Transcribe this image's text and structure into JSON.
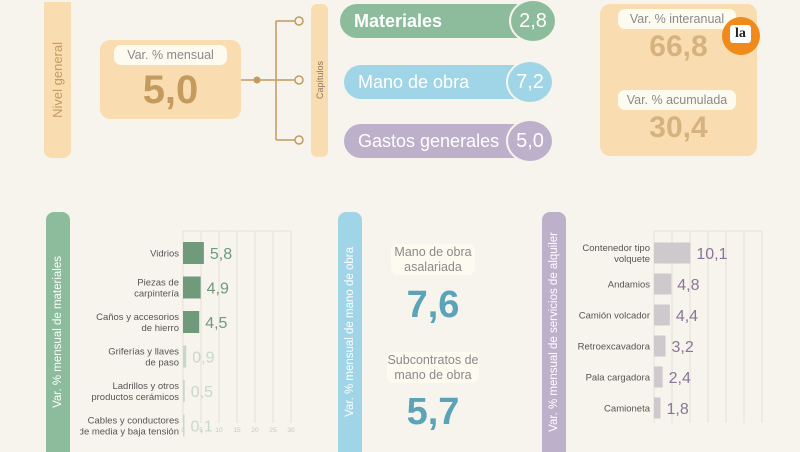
{
  "colors": {
    "orange": "#f9ddb0",
    "orange_text": "#c49a5e",
    "green": "#8cbc9c",
    "green_dark": "#6f9a7c",
    "blue": "#9fd5e6",
    "blue_text": "#5aa3b8",
    "purple": "#bdb0ca",
    "purple_text": "#8a7598",
    "logo": "#f08a1b"
  },
  "nivel_general": {
    "side_label": "Nivel general",
    "tag": "Var. % mensual",
    "value": "5,0"
  },
  "capitulos": {
    "side_label": "Capítulos",
    "items": [
      {
        "label": "Materiales",
        "value": "2,8"
      },
      {
        "label": "Mano de obra",
        "value": "7,2"
      },
      {
        "label": "Gastos generales",
        "value": "5,0"
      }
    ]
  },
  "right_panel": {
    "interanual_tag": "Var. % interanual",
    "interanual_value": "66,8",
    "acumulada_tag": "Var. % acumulada",
    "acumulada_value": "30,4",
    "logo_text": "la"
  },
  "mano_obra": {
    "side_label": "Var. % mensual de mano de obra",
    "asalariada_tag": "Mano de obra asalariada",
    "asalariada_value": "7,6",
    "subcontratos_tag": "Subcontratos de mano de obra",
    "subcontratos_value": "5,7"
  },
  "chart_data": [
    {
      "type": "bar",
      "side_label": "Var. % mensual de materiales",
      "categories": [
        "Vidrios",
        "Piezas de carpintería",
        "Caños y accesorios de hierro",
        "Griferías y llaves de paso",
        "Ladrillos y otros productos cerámicos",
        "Cables y conductores de media y baja tensión"
      ],
      "category_lines": [
        [
          "Vidrios"
        ],
        [
          "Piezas de",
          "carpintería"
        ],
        [
          "Caños y accesorios",
          "de hierro"
        ],
        [
          "Griferías y llaves",
          "de paso"
        ],
        [
          "Ladrillos y otros",
          "productos cerámicos"
        ],
        [
          "Cables y conductores",
          "de media y baja tensión"
        ]
      ],
      "values": [
        5.8,
        4.9,
        4.5,
        0.9,
        0.5,
        0.1
      ],
      "labels": [
        "5,8",
        "4,9",
        "4,5",
        "0,9",
        "0,5",
        "0,1"
      ],
      "xlim": [
        0,
        30
      ],
      "ticks": [
        "0",
        "5",
        "10",
        "15",
        "20",
        "25",
        "30"
      ],
      "grid": true
    },
    {
      "type": "bar",
      "side_label": "Var. % mensual de servicios de alquiler",
      "categories": [
        "Contenedor tipo volquete",
        "Andamios",
        "Camión volcador",
        "Retroexcavadora",
        "Pala cargadora",
        "Camioneta"
      ],
      "category_lines": [
        [
          "Contenedor tipo",
          "volquete"
        ],
        [
          "Andamios"
        ],
        [
          "Camión volcador"
        ],
        [
          "Retroexcavadora"
        ],
        [
          "Pala cargadora"
        ],
        [
          "Camioneta"
        ]
      ],
      "values": [
        10.1,
        4.8,
        4.4,
        3.2,
        2.4,
        1.8
      ],
      "labels": [
        "10,1",
        "4,8",
        "4,4",
        "3,2",
        "2,4",
        "1,8"
      ],
      "xlim": [
        0,
        30
      ],
      "grid": true
    }
  ]
}
